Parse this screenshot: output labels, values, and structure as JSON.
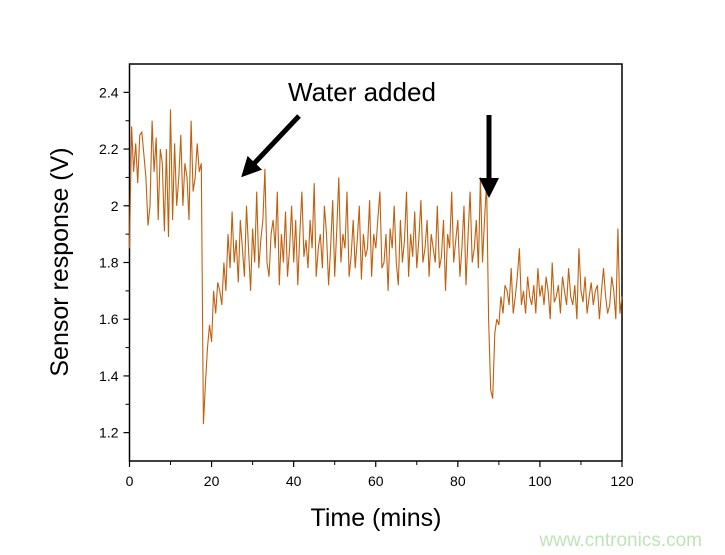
{
  "chart_data": {
    "type": "line",
    "xlabel": "Time (mins)",
    "ylabel": "Sensor response (V)",
    "xlim": [
      0,
      120
    ],
    "ylim": [
      1.1,
      2.5
    ],
    "xticks": [
      "0",
      "20",
      "40",
      "60",
      "80",
      "100",
      "120"
    ],
    "yticks": [
      "1.2",
      "1.4",
      "1.6",
      "1.8",
      "2",
      "2.2",
      "2.4"
    ],
    "grid": false,
    "line_color": "#c0600f",
    "annotations": [
      {
        "text": "Water added",
        "arrows_point_to_x": [
          18,
          88
        ]
      }
    ],
    "points": [
      [
        0,
        1.85
      ],
      [
        0.5,
        2.28
      ],
      [
        1,
        2.12
      ],
      [
        1.5,
        2.22
      ],
      [
        2,
        2.08
      ],
      [
        2.5,
        2.25
      ],
      [
        3,
        2.26
      ],
      [
        3.5,
        2.18
      ],
      [
        4,
        2.1
      ],
      [
        4.5,
        1.93
      ],
      [
        5,
        2.0
      ],
      [
        5.5,
        2.3
      ],
      [
        6,
        2.12
      ],
      [
        6.5,
        2.24
      ],
      [
        7,
        1.95
      ],
      [
        7.5,
        2.2
      ],
      [
        8,
        2.15
      ],
      [
        8.5,
        1.91
      ],
      [
        9,
        2.2
      ],
      [
        9.5,
        1.89
      ],
      [
        10,
        2.34
      ],
      [
        10.5,
        1.95
      ],
      [
        11,
        2.22
      ],
      [
        11.5,
        2.0
      ],
      [
        12,
        2.1
      ],
      [
        12.5,
        2.25
      ],
      [
        13,
        2.0
      ],
      [
        13.5,
        2.15
      ],
      [
        14,
        2.1
      ],
      [
        14.5,
        1.95
      ],
      [
        15,
        2.3
      ],
      [
        15.5,
        2.05
      ],
      [
        16,
        2.1
      ],
      [
        16.5,
        2.22
      ],
      [
        17,
        2.12
      ],
      [
        17.5,
        2.15
      ],
      [
        18,
        1.23
      ],
      [
        18.5,
        1.37
      ],
      [
        19,
        1.5
      ],
      [
        19.5,
        1.58
      ],
      [
        20,
        1.52
      ],
      [
        20.5,
        1.7
      ],
      [
        21,
        1.62
      ],
      [
        21.5,
        1.73
      ],
      [
        22,
        1.7
      ],
      [
        22.5,
        1.65
      ],
      [
        23,
        1.8
      ],
      [
        23.5,
        1.7
      ],
      [
        24,
        1.9
      ],
      [
        24.5,
        1.78
      ],
      [
        25,
        1.98
      ],
      [
        25.5,
        1.8
      ],
      [
        26,
        1.88
      ],
      [
        26.5,
        1.73
      ],
      [
        27,
        1.95
      ],
      [
        27.5,
        1.85
      ],
      [
        28,
        1.75
      ],
      [
        28.5,
        2.0
      ],
      [
        29,
        1.85
      ],
      [
        29.5,
        1.7
      ],
      [
        30,
        1.92
      ],
      [
        30.5,
        1.8
      ],
      [
        31,
        2.05
      ],
      [
        31.5,
        1.78
      ],
      [
        32,
        1.88
      ],
      [
        32.5,
        1.95
      ],
      [
        33,
        2.13
      ],
      [
        33.5,
        1.8
      ],
      [
        34,
        1.75
      ],
      [
        34.5,
        1.9
      ],
      [
        35,
        1.95
      ],
      [
        35.5,
        1.85
      ],
      [
        36,
        2.05
      ],
      [
        36.5,
        1.72
      ],
      [
        37,
        1.9
      ],
      [
        37.5,
        1.8
      ],
      [
        38,
        1.98
      ],
      [
        38.5,
        1.75
      ],
      [
        39,
        1.85
      ],
      [
        39.5,
        2.0
      ],
      [
        40,
        1.8
      ],
      [
        40.5,
        1.95
      ],
      [
        41,
        1.72
      ],
      [
        41.5,
        1.9
      ],
      [
        42,
        2.05
      ],
      [
        42.5,
        1.82
      ],
      [
        43,
        1.88
      ],
      [
        43.5,
        1.78
      ],
      [
        44,
        1.95
      ],
      [
        44.5,
        1.85
      ],
      [
        45,
        2.08
      ],
      [
        45.5,
        1.75
      ],
      [
        46,
        1.85
      ],
      [
        46.5,
        1.9
      ],
      [
        47,
        1.78
      ],
      [
        47.5,
        2.0
      ],
      [
        48,
        1.9
      ],
      [
        48.5,
        1.72
      ],
      [
        49,
        1.85
      ],
      [
        49.5,
        2.02
      ],
      [
        50,
        1.75
      ],
      [
        50.5,
        1.92
      ],
      [
        51,
        2.1
      ],
      [
        51.5,
        1.8
      ],
      [
        52,
        1.9
      ],
      [
        52.5,
        1.85
      ],
      [
        53,
        2.05
      ],
      [
        53.5,
        1.75
      ],
      [
        54,
        1.82
      ],
      [
        54.5,
        1.95
      ],
      [
        55,
        1.78
      ],
      [
        55.5,
        1.88
      ],
      [
        56,
        2.0
      ],
      [
        56.5,
        1.74
      ],
      [
        57,
        1.9
      ],
      [
        57.5,
        1.82
      ],
      [
        58,
        1.85
      ],
      [
        58.5,
        2.02
      ],
      [
        59,
        1.75
      ],
      [
        59.5,
        1.9
      ],
      [
        60,
        1.85
      ],
      [
        60.5,
        1.95
      ],
      [
        61,
        2.05
      ],
      [
        61.5,
        1.78
      ],
      [
        62,
        1.8
      ],
      [
        62.5,
        1.9
      ],
      [
        63,
        1.7
      ],
      [
        63.5,
        1.92
      ],
      [
        64,
        1.85
      ],
      [
        64.5,
        2.0
      ],
      [
        65,
        1.8
      ],
      [
        65.5,
        1.72
      ],
      [
        66,
        1.95
      ],
      [
        66.5,
        1.8
      ],
      [
        67,
        1.88
      ],
      [
        67.5,
        2.05
      ],
      [
        68,
        1.75
      ],
      [
        68.5,
        1.9
      ],
      [
        69,
        1.82
      ],
      [
        69.5,
        1.98
      ],
      [
        70,
        1.78
      ],
      [
        70.5,
        1.88
      ],
      [
        71,
        2.02
      ],
      [
        71.5,
        1.8
      ],
      [
        72,
        1.85
      ],
      [
        72.5,
        1.95
      ],
      [
        73,
        1.75
      ],
      [
        73.5,
        1.9
      ],
      [
        74,
        1.85
      ],
      [
        74.5,
        1.8
      ],
      [
        75,
        2.0
      ],
      [
        75.5,
        1.78
      ],
      [
        76,
        1.82
      ],
      [
        76.5,
        1.95
      ],
      [
        77,
        1.7
      ],
      [
        77.5,
        1.9
      ],
      [
        78,
        1.85
      ],
      [
        78.5,
        2.05
      ],
      [
        79,
        1.8
      ],
      [
        79.5,
        1.88
      ],
      [
        80,
        1.95
      ],
      [
        80.5,
        1.75
      ],
      [
        81,
        1.85
      ],
      [
        81.5,
        2.0
      ],
      [
        82,
        1.72
      ],
      [
        82.5,
        1.9
      ],
      [
        83,
        2.05
      ],
      [
        83.5,
        1.8
      ],
      [
        84,
        1.85
      ],
      [
        84.5,
        1.95
      ],
      [
        85,
        1.78
      ],
      [
        85.5,
        2.1
      ],
      [
        86,
        1.8
      ],
      [
        86.5,
        1.95
      ],
      [
        87,
        2.08
      ],
      [
        87.5,
        1.6
      ],
      [
        88,
        1.35
      ],
      [
        88.5,
        1.32
      ],
      [
        89,
        1.55
      ],
      [
        89.5,
        1.6
      ],
      [
        90,
        1.58
      ],
      [
        90.5,
        1.68
      ],
      [
        91,
        1.62
      ],
      [
        91.5,
        1.72
      ],
      [
        92,
        1.7
      ],
      [
        92.5,
        1.65
      ],
      [
        93,
        1.78
      ],
      [
        93.5,
        1.62
      ],
      [
        94,
        1.68
      ],
      [
        94.5,
        1.75
      ],
      [
        95,
        1.85
      ],
      [
        95.5,
        1.65
      ],
      [
        96,
        1.7
      ],
      [
        96.5,
        1.62
      ],
      [
        97,
        1.75
      ],
      [
        97.5,
        1.68
      ],
      [
        98,
        1.65
      ],
      [
        98.5,
        1.72
      ],
      [
        99,
        1.62
      ],
      [
        99.5,
        1.78
      ],
      [
        100,
        1.68
      ],
      [
        100.5,
        1.72
      ],
      [
        101,
        1.65
      ],
      [
        101.5,
        1.75
      ],
      [
        102,
        1.7
      ],
      [
        102.5,
        1.6
      ],
      [
        103,
        1.8
      ],
      [
        103.5,
        1.66
      ],
      [
        104,
        1.68
      ],
      [
        104.5,
        1.72
      ],
      [
        105,
        1.62
      ],
      [
        105.5,
        1.75
      ],
      [
        106,
        1.7
      ],
      [
        106.5,
        1.65
      ],
      [
        107,
        1.78
      ],
      [
        107.5,
        1.68
      ],
      [
        108,
        1.65
      ],
      [
        108.5,
        1.72
      ],
      [
        109,
        1.6
      ],
      [
        109.5,
        1.85
      ],
      [
        110,
        1.7
      ],
      [
        110.5,
        1.66
      ],
      [
        111,
        1.75
      ],
      [
        111.5,
        1.62
      ],
      [
        112,
        1.68
      ],
      [
        112.5,
        1.73
      ],
      [
        113,
        1.65
      ],
      [
        113.5,
        1.7
      ],
      [
        114,
        1.72
      ],
      [
        114.5,
        1.6
      ],
      [
        115,
        1.7
      ],
      [
        115.5,
        1.78
      ],
      [
        116,
        1.68
      ],
      [
        116.5,
        1.62
      ],
      [
        117,
        1.65
      ],
      [
        117.5,
        1.75
      ],
      [
        118,
        1.7
      ],
      [
        118.5,
        1.6
      ],
      [
        119,
        1.92
      ],
      [
        119.5,
        1.62
      ],
      [
        120,
        1.68
      ]
    ]
  },
  "watermark": "www.cntronics.com"
}
